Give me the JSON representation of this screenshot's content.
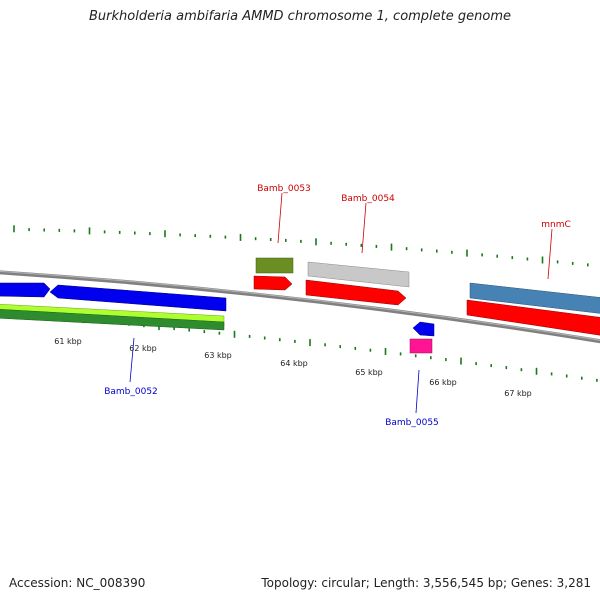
{
  "title": "Burkholderia ambifaria AMMD chromosome 1, complete genome",
  "footer": {
    "accession": "Accession: NC_008390",
    "stats": "Topology: circular; Length: 3,556,545 bp; Genes: 3,281"
  },
  "scale": {
    "unit": "kbp",
    "ticks": [
      "61 kbp",
      "62 kbp",
      "63 kbp",
      "64 kbp",
      "65 kbp",
      "66 kbp",
      "67 kbp"
    ]
  },
  "genes": [
    {
      "name": "Bamb_0052",
      "strand": "reverse",
      "color": "#0000cc"
    },
    {
      "name": "Bamb_0053",
      "strand": "forward",
      "color": "#cc0000"
    },
    {
      "name": "Bamb_0054",
      "strand": "forward",
      "color": "#cc0000"
    },
    {
      "name": "Bamb_0055",
      "strand": "reverse",
      "color": "#0000cc"
    },
    {
      "name": "mnmC",
      "strand": "forward",
      "color": "#cc0000"
    }
  ],
  "colors": {
    "backbone": "#808080",
    "forward_cds": "#ff0000",
    "reverse_cds": "#0000ee",
    "rna_green": "#2e8b2e",
    "lime": "#adff2f",
    "olive": "#6b8e23",
    "grey_feature": "#c8c8c8",
    "steelblue": "#4682b4",
    "magenta": "#ff1493",
    "tick_green": "#1a7a1a"
  }
}
